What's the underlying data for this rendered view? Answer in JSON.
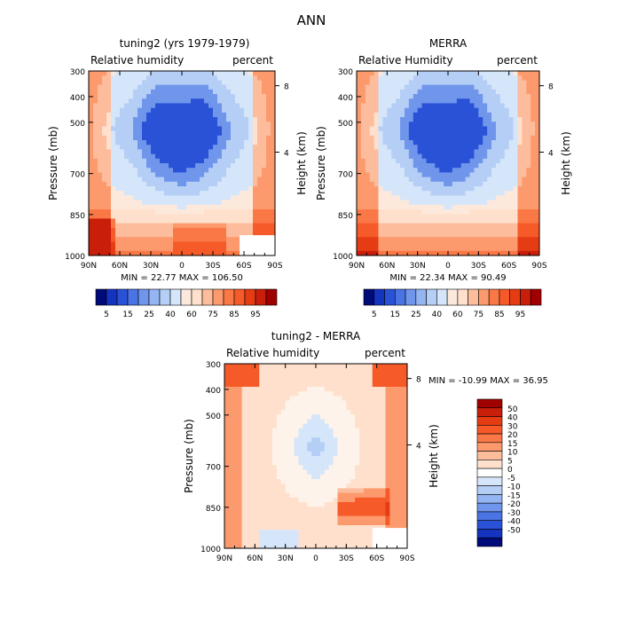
{
  "figure_title": "ANN",
  "colors": {
    "red_scale": [
      "#a00000",
      "#c81e0a",
      "#e63c14",
      "#f55a28",
      "#fa7846",
      "#fc9a6e",
      "#fdbc9c",
      "#fee0cc"
    ],
    "neutral": "#ffffff",
    "blue_scale": [
      "#d6e6fa",
      "#b4cef6",
      "#94b4f2",
      "#7096ec",
      "#4a74e4",
      "#2a52d6",
      "#1434c0",
      "#0a1e9a",
      "#000a78"
    ]
  },
  "chart_data": [
    {
      "type": "heatmap",
      "title": "tuning2 (yrs 1979-1979)",
      "left_label": "Relative humidity",
      "right_label": "percent",
      "ylabel": "Pressure (mb)",
      "y2label": "Height (km)",
      "x_ticks": [
        "90N",
        "60N",
        "30N",
        "0",
        "30S",
        "60S",
        "90S"
      ],
      "y_ticks": [
        "300",
        "400",
        "500",
        "700",
        "850",
        "1000"
      ],
      "y2_ticks": [
        "8",
        "4"
      ],
      "stats": "MIN =  22.77   MAX =  106.50",
      "min": 22.77,
      "max": 106.5,
      "colorbar": {
        "orientation": "horizontal",
        "labels": [
          "5",
          "15",
          "25",
          "40",
          "60",
          "75",
          "85",
          "95"
        ]
      }
    },
    {
      "type": "heatmap",
      "title": "MERRA",
      "left_label": "Relative Humidity",
      "right_label": "percent",
      "ylabel": "Pressure (mb)",
      "y2label": "Height (km)",
      "x_ticks": [
        "90N",
        "60N",
        "30N",
        "0",
        "30S",
        "60S",
        "90S"
      ],
      "y_ticks": [
        "300",
        "400",
        "500",
        "700",
        "850",
        "1000"
      ],
      "y2_ticks": [
        "8",
        "4"
      ],
      "stats": "MIN =  22.34   MAX =  90.49",
      "min": 22.34,
      "max": 90.49,
      "colorbar": {
        "orientation": "horizontal",
        "labels": [
          "5",
          "15",
          "25",
          "40",
          "60",
          "75",
          "85",
          "95"
        ]
      }
    },
    {
      "type": "heatmap",
      "title": "tuning2 - MERRA",
      "left_label": "Relative humidity",
      "right_label": "percent",
      "ylabel": "Pressure (mb)",
      "y2label": "Height (km)",
      "x_ticks": [
        "90N",
        "60N",
        "30N",
        "0",
        "30S",
        "60S",
        "90S"
      ],
      "y_ticks": [
        "300",
        "400",
        "500",
        "700",
        "850",
        "1000"
      ],
      "y2_ticks": [
        "8",
        "4"
      ],
      "stats": "MIN = -10.99   MAX =  36.95",
      "min": -10.99,
      "max": 36.95,
      "colorbar": {
        "orientation": "vertical",
        "labels": [
          "50",
          "40",
          "30",
          "20",
          "15",
          "10",
          "5",
          "0",
          "-5",
          "-10",
          "-15",
          "-20",
          "-30",
          "-40",
          "-50"
        ]
      }
    }
  ]
}
